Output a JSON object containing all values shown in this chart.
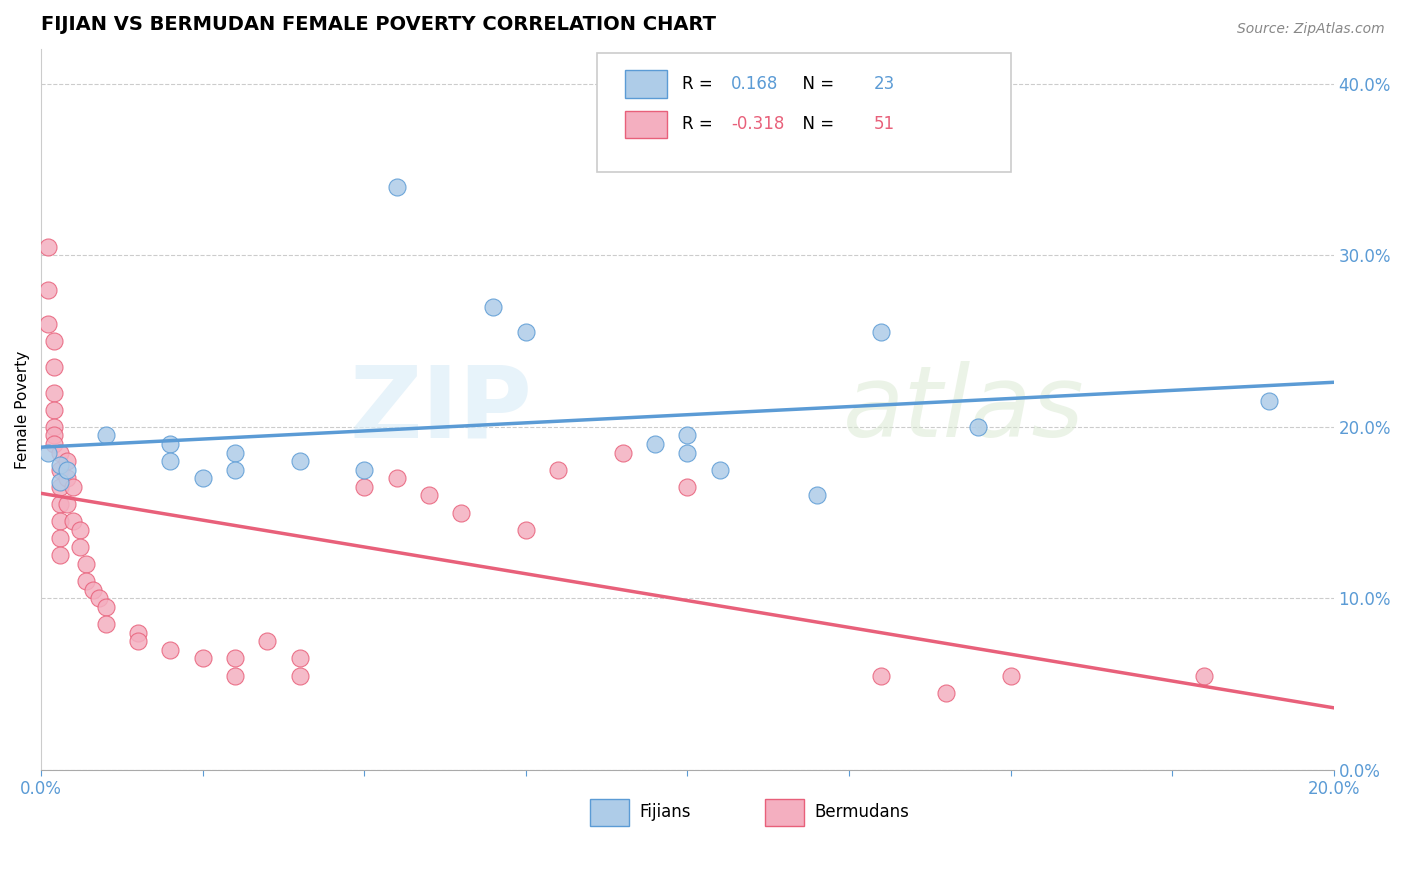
{
  "title": "FIJIAN VS BERMUDAN FEMALE POVERTY CORRELATION CHART",
  "source": "Source: ZipAtlas.com",
  "ylabel": "Female Poverty",
  "legend_fijians": "Fijians",
  "legend_bermudans": "Bermudans",
  "r_fijians": "0.168",
  "n_fijians": "23",
  "r_bermudans": "-0.318",
  "n_bermudans": "51",
  "fijian_color": "#aecce8",
  "bermudan_color": "#f4afc0",
  "fijian_line_color": "#5b9bd5",
  "bermudan_line_color": "#e8607a",
  "background_color": "#ffffff",
  "fijian_scatter": [
    [
      0.001,
      0.185
    ],
    [
      0.003,
      0.178
    ],
    [
      0.003,
      0.168
    ],
    [
      0.004,
      0.175
    ],
    [
      0.01,
      0.195
    ],
    [
      0.02,
      0.19
    ],
    [
      0.02,
      0.18
    ],
    [
      0.025,
      0.17
    ],
    [
      0.03,
      0.185
    ],
    [
      0.03,
      0.175
    ],
    [
      0.04,
      0.18
    ],
    [
      0.05,
      0.175
    ],
    [
      0.055,
      0.34
    ],
    [
      0.07,
      0.27
    ],
    [
      0.075,
      0.255
    ],
    [
      0.095,
      0.19
    ],
    [
      0.1,
      0.195
    ],
    [
      0.1,
      0.185
    ],
    [
      0.105,
      0.175
    ],
    [
      0.12,
      0.16
    ],
    [
      0.13,
      0.255
    ],
    [
      0.145,
      0.2
    ],
    [
      0.19,
      0.215
    ]
  ],
  "bermudan_scatter": [
    [
      0.001,
      0.305
    ],
    [
      0.001,
      0.28
    ],
    [
      0.001,
      0.26
    ],
    [
      0.002,
      0.25
    ],
    [
      0.002,
      0.235
    ],
    [
      0.002,
      0.22
    ],
    [
      0.002,
      0.21
    ],
    [
      0.002,
      0.2
    ],
    [
      0.002,
      0.195
    ],
    [
      0.002,
      0.19
    ],
    [
      0.003,
      0.185
    ],
    [
      0.003,
      0.175
    ],
    [
      0.003,
      0.165
    ],
    [
      0.003,
      0.155
    ],
    [
      0.003,
      0.145
    ],
    [
      0.003,
      0.135
    ],
    [
      0.003,
      0.125
    ],
    [
      0.004,
      0.18
    ],
    [
      0.004,
      0.17
    ],
    [
      0.004,
      0.155
    ],
    [
      0.005,
      0.165
    ],
    [
      0.005,
      0.145
    ],
    [
      0.006,
      0.14
    ],
    [
      0.006,
      0.13
    ],
    [
      0.007,
      0.12
    ],
    [
      0.007,
      0.11
    ],
    [
      0.008,
      0.105
    ],
    [
      0.009,
      0.1
    ],
    [
      0.01,
      0.095
    ],
    [
      0.01,
      0.085
    ],
    [
      0.015,
      0.08
    ],
    [
      0.015,
      0.075
    ],
    [
      0.02,
      0.07
    ],
    [
      0.025,
      0.065
    ],
    [
      0.03,
      0.065
    ],
    [
      0.03,
      0.055
    ],
    [
      0.035,
      0.075
    ],
    [
      0.04,
      0.065
    ],
    [
      0.04,
      0.055
    ],
    [
      0.05,
      0.165
    ],
    [
      0.055,
      0.17
    ],
    [
      0.06,
      0.16
    ],
    [
      0.065,
      0.15
    ],
    [
      0.075,
      0.14
    ],
    [
      0.08,
      0.175
    ],
    [
      0.09,
      0.185
    ],
    [
      0.1,
      0.165
    ],
    [
      0.13,
      0.055
    ],
    [
      0.14,
      0.045
    ],
    [
      0.15,
      0.055
    ],
    [
      0.18,
      0.055
    ]
  ],
  "xlim": [
    0.0,
    0.2
  ],
  "ylim": [
    0.0,
    0.42
  ],
  "yticks": [
    0.0,
    0.1,
    0.2,
    0.3,
    0.4
  ]
}
